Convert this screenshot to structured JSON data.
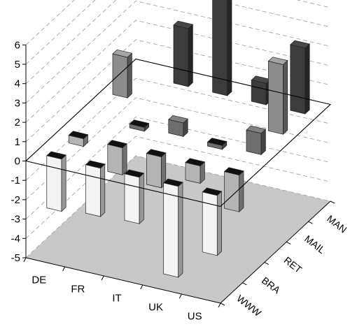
{
  "chart_data": {
    "type": "bar",
    "subtype": "3d-column",
    "title": "",
    "categories": [
      "DE",
      "FR",
      "IT",
      "UK",
      "US"
    ],
    "series_order_back_to_front": [
      "MAN",
      "MAIL",
      "RET",
      "BRA",
      "WWW"
    ],
    "ylim": [
      -5,
      6
    ],
    "yticks": [
      -5,
      -4,
      -3,
      -2,
      -1,
      0,
      1,
      2,
      3,
      4,
      5,
      6
    ],
    "grid": true,
    "floor_color": "#c8c8c8",
    "series": [
      {
        "name": "MAN",
        "color": "#3c3c3c",
        "values": [
          0,
          3,
          5,
          1.1,
          3.4
        ]
      },
      {
        "name": "MAIL",
        "color": "#8c8c8c",
        "values": [
          2.1,
          0,
          0,
          0,
          3.6
        ]
      },
      {
        "name": "RET",
        "color": "#6e6e6e",
        "values": [
          0,
          -0.2,
          0.7,
          -0.2,
          1.1
        ]
      },
      {
        "name": "BRA",
        "color": "#b4b4b4",
        "values": [
          -0.4,
          -1.4,
          -1.6,
          -0.9,
          -1.9
        ]
      },
      {
        "name": "WWW",
        "color": "#f4f4f4",
        "values": [
          -2.7,
          -2.5,
          -2.4,
          -4.7,
          -3.1
        ]
      }
    ]
  }
}
